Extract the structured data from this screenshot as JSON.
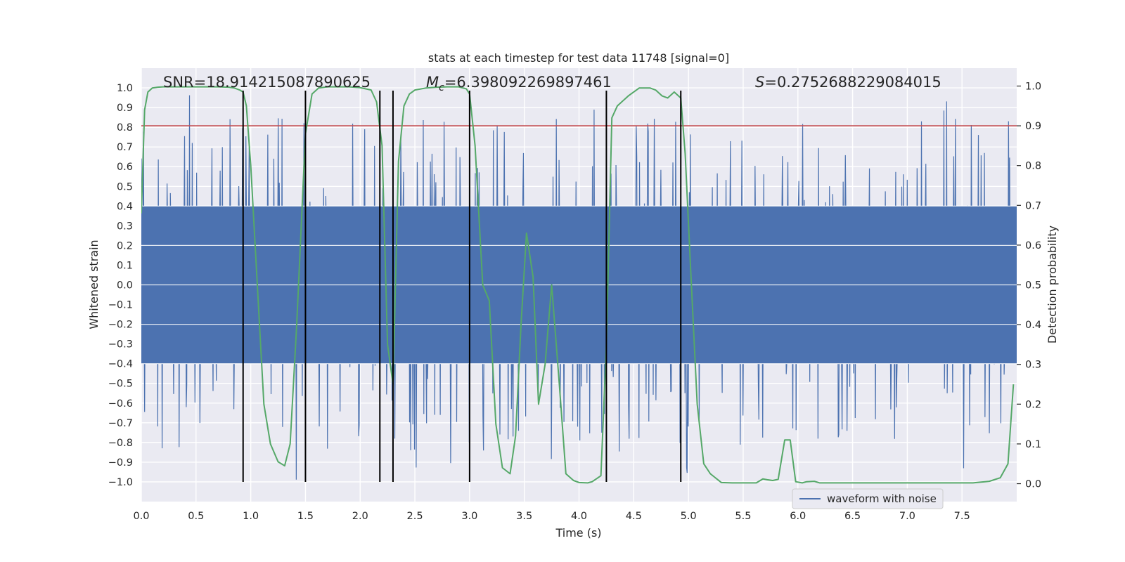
{
  "chart_data": {
    "type": "line",
    "title": "stats at each timestep for test data 11748 [signal=0]",
    "xlabel": "Time (s)",
    "ylabel": "Whitened strain",
    "y2label": "Detection probability",
    "xlim": [
      0.0,
      8.0
    ],
    "ylim": [
      -1.1,
      1.1
    ],
    "y2lim": [
      -0.045,
      1.045
    ],
    "x_ticks": [
      "0.0",
      "0.5",
      "1.0",
      "1.5",
      "2.0",
      "2.5",
      "3.0",
      "3.5",
      "4.0",
      "4.5",
      "5.0",
      "5.5",
      "6.0",
      "6.5",
      "7.0",
      "7.5"
    ],
    "y_ticks": [
      "1.0",
      "0.9",
      "0.8",
      "0.7",
      "0.6",
      "0.5",
      "0.4",
      "0.3",
      "0.2",
      "0.1",
      "0.0",
      "−0.1",
      "−0.2",
      "−0.3",
      "−0.4",
      "−0.5",
      "−0.6",
      "−0.7",
      "−0.8",
      "−0.9",
      "−1.0"
    ],
    "y2_ticks": [
      "1.0",
      "0.9",
      "0.8",
      "0.7",
      "0.6",
      "0.5",
      "0.4",
      "0.3",
      "0.2",
      "0.1",
      "0.0"
    ],
    "annotations": {
      "snr": "SNR=18.914215087890625",
      "mc_symbol": "M",
      "mc_sub": "c",
      "mc_value": "=6.398092269897461",
      "s_symbol": "S",
      "s_value": "=0.2752688229084015"
    },
    "threshold": {
      "value": 0.9,
      "axis": "right",
      "color": "#c44e52"
    },
    "transition_times": [
      0.93,
      1.5,
      2.18,
      2.3,
      3.0,
      4.25,
      4.93
    ],
    "series": [
      {
        "name": "waveform with noise",
        "axis": "left",
        "color": "#4c72b0",
        "noise_envelope": {
          "core_amplitude": 0.4,
          "peak_amplitude": 1.0,
          "samples": 1600
        }
      },
      {
        "name": "detection probability",
        "axis": "right",
        "color": "#55a868",
        "x": [
          0.0,
          0.03,
          0.06,
          0.1,
          0.15,
          0.2,
          0.3,
          0.4,
          0.5,
          0.6,
          0.7,
          0.8,
          0.85,
          0.9,
          0.93,
          0.96,
          1.0,
          1.05,
          1.12,
          1.18,
          1.25,
          1.31,
          1.36,
          1.42,
          1.5,
          1.56,
          1.62,
          1.7,
          1.8,
          1.9,
          2.0,
          2.1,
          2.15,
          2.2,
          2.25,
          2.3,
          2.35,
          2.4,
          2.45,
          2.5,
          2.6,
          2.7,
          2.8,
          2.9,
          2.97,
          3.0,
          3.05,
          3.12,
          3.18,
          3.24,
          3.3,
          3.37,
          3.42,
          3.47,
          3.52,
          3.58,
          3.63,
          3.69,
          3.75,
          3.82,
          3.88,
          3.95,
          4.0,
          4.08,
          4.12,
          4.2,
          4.25,
          4.3,
          4.35,
          4.45,
          4.55,
          4.65,
          4.7,
          4.76,
          4.81,
          4.87,
          4.93,
          4.97,
          5.02,
          5.08,
          5.14,
          5.2,
          5.3,
          5.4,
          5.5,
          5.62,
          5.68,
          5.72,
          5.77,
          5.82,
          5.88,
          5.93,
          5.98,
          6.04,
          6.08,
          6.15,
          6.2,
          6.3,
          6.5,
          6.7,
          6.9,
          7.0,
          7.2,
          7.4,
          7.5,
          7.6,
          7.75,
          7.85,
          7.92,
          7.97
        ],
        "values": [
          0.68,
          0.94,
          0.985,
          0.995,
          0.997,
          0.998,
          0.998,
          0.998,
          0.998,
          0.998,
          0.998,
          0.997,
          0.995,
          0.99,
          0.985,
          0.95,
          0.8,
          0.55,
          0.2,
          0.1,
          0.055,
          0.045,
          0.1,
          0.4,
          0.88,
          0.98,
          0.995,
          0.998,
          0.998,
          0.998,
          0.996,
          0.99,
          0.96,
          0.85,
          0.35,
          0.25,
          0.81,
          0.95,
          0.98,
          0.99,
          0.995,
          0.997,
          0.998,
          0.998,
          0.993,
          0.98,
          0.85,
          0.5,
          0.46,
          0.15,
          0.04,
          0.025,
          0.12,
          0.4,
          0.63,
          0.52,
          0.2,
          0.3,
          0.5,
          0.25,
          0.025,
          0.008,
          0.003,
          0.002,
          0.005,
          0.02,
          0.35,
          0.92,
          0.95,
          0.975,
          0.995,
          0.995,
          0.99,
          0.975,
          0.97,
          0.985,
          0.97,
          0.83,
          0.54,
          0.2,
          0.05,
          0.025,
          0.003,
          0.002,
          0.002,
          0.002,
          0.012,
          0.01,
          0.008,
          0.011,
          0.11,
          0.11,
          0.005,
          0.002,
          0.005,
          0.006,
          0.002,
          0.002,
          0.002,
          0.002,
          0.002,
          0.002,
          0.002,
          0.002,
          0.002,
          0.002,
          0.006,
          0.015,
          0.05,
          0.25
        ]
      }
    ],
    "legend": {
      "placement": "lower-center",
      "entries": [
        "waveform with noise"
      ]
    },
    "grid": true
  }
}
